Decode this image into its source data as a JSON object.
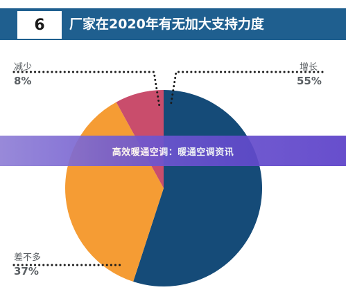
{
  "header": {
    "number": "6",
    "title": "厂家在2020年有无加大支持力度"
  },
  "overlay": {
    "text": "高效暖通空调：暖通空调资讯"
  },
  "colors": {
    "header": "#1f5f8f",
    "increase": "#154b78",
    "same": "#f59c34",
    "decrease": "#c94d6c"
  },
  "chart_data": {
    "type": "pie",
    "title": "",
    "slices": [
      {
        "label": "增长",
        "value": 55,
        "display": "55%",
        "color": "#154b78"
      },
      {
        "label": "差不多",
        "value": 37,
        "display": "37%",
        "color": "#f59c34"
      },
      {
        "label": "减少",
        "value": 8,
        "display": "8%",
        "color": "#c94d6c"
      }
    ],
    "start": "12 o'clock",
    "direction": "clockwise"
  }
}
